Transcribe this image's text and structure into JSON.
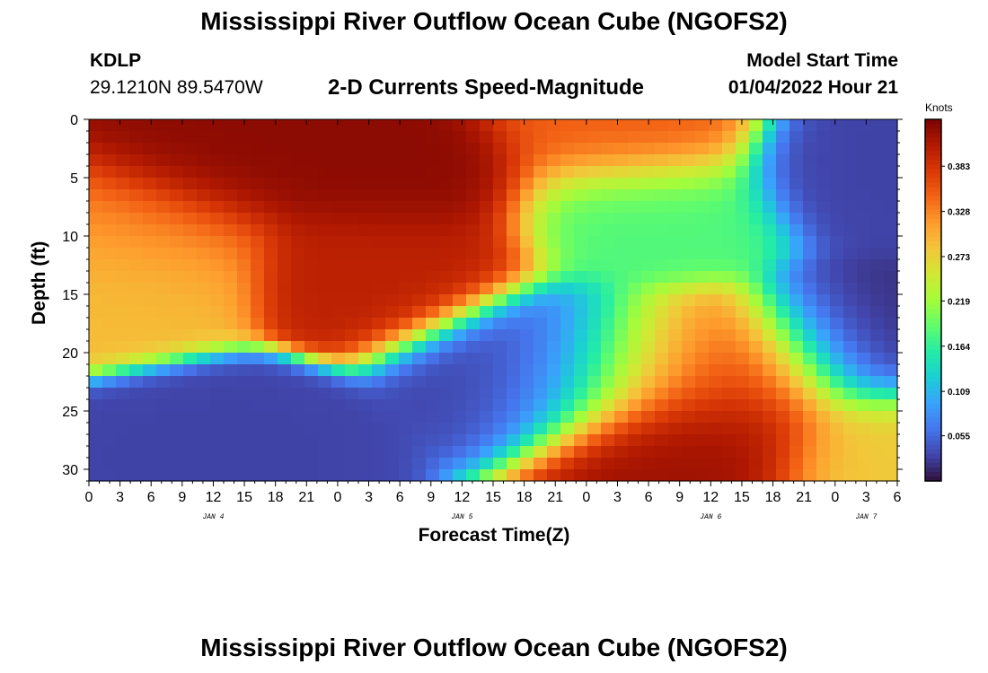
{
  "header": {
    "title": "Mississippi River Outflow Ocean Cube (NGOFS2)",
    "station_id": "KDLP",
    "station_coords": "29.1210N  89.5470W",
    "chart_title": "2-D Currents Speed-Magnitude",
    "start_label": "Model Start Time",
    "start_time": "01/04/2022 Hour 21"
  },
  "footer": {
    "title": "Mississippi River Outflow Ocean Cube (NGOFS2)"
  },
  "chart_data": {
    "type": "heatmap",
    "title": "2-D Currents Speed-Magnitude",
    "xlabel": "Forecast Time(Z)",
    "ylabel": "Depth (ft)",
    "x_hours_range": [
      0,
      78
    ],
    "x_tick_labels": [
      "0",
      "3",
      "6",
      "9",
      "12",
      "15",
      "18",
      "21",
      "0",
      "3",
      "6",
      "9",
      "12",
      "15",
      "18",
      "21",
      "0",
      "3",
      "6",
      "9",
      "12",
      "15",
      "18",
      "21",
      "0",
      "3",
      "6"
    ],
    "x_day_labels": [
      {
        "label": "JAN 4",
        "hour": 12
      },
      {
        "label": "JAN 5",
        "hour": 36
      },
      {
        "label": "JAN 6",
        "hour": 60
      },
      {
        "label": "JAN 7",
        "hour": 75
      }
    ],
    "ylim": [
      0,
      31
    ],
    "y_inverted": true,
    "y_ticks": [
      0,
      5,
      10,
      15,
      20,
      25,
      30
    ],
    "colorbar": {
      "title": "Knots",
      "range": [
        0,
        0.44
      ],
      "ticks": [
        0.383,
        0.328,
        0.273,
        0.219,
        0.164,
        0.109,
        0.055
      ],
      "colormap": [
        "#30123b",
        "#4145ab",
        "#4675ed",
        "#39a2fc",
        "#1bcfd4",
        "#24eca6",
        "#61fc6c",
        "#a4fc3b",
        "#d1e834",
        "#f3c63a",
        "#fe9b2d",
        "#f36315",
        "#d93806",
        "#b11901",
        "#7a0403"
      ]
    },
    "features": [
      {
        "hour": 11,
        "depth": 3.5,
        "speed": 0.43
      },
      {
        "hour": 31,
        "depth": 5,
        "speed": 0.43
      },
      {
        "hour": 30,
        "depth": 12,
        "speed": 0.4
      },
      {
        "hour": 4,
        "depth": 9,
        "speed": 0.33
      },
      {
        "hour": 1,
        "depth": 13,
        "speed": 0.29
      },
      {
        "hour": 51,
        "depth": 1,
        "speed": 0.35
      },
      {
        "hour": 53,
        "depth": 8,
        "speed": 0.18
      },
      {
        "hour": 59,
        "depth": 27,
        "speed": 0.42
      },
      {
        "hour": 63,
        "depth": 22,
        "speed": 0.38
      },
      {
        "hour": 54,
        "depth": 21,
        "speed": 0.3
      },
      {
        "hour": 45,
        "depth": 20.5,
        "speed": 0.03
      },
      {
        "hour": 75,
        "depth": 19.5,
        "speed": 0.02
      },
      {
        "hour": 77,
        "depth": 4,
        "speed": 0.03
      },
      {
        "hour": 12,
        "depth": 29,
        "speed": 0.03
      },
      {
        "hour": 78,
        "depth": 28,
        "speed": 0.28
      }
    ]
  }
}
